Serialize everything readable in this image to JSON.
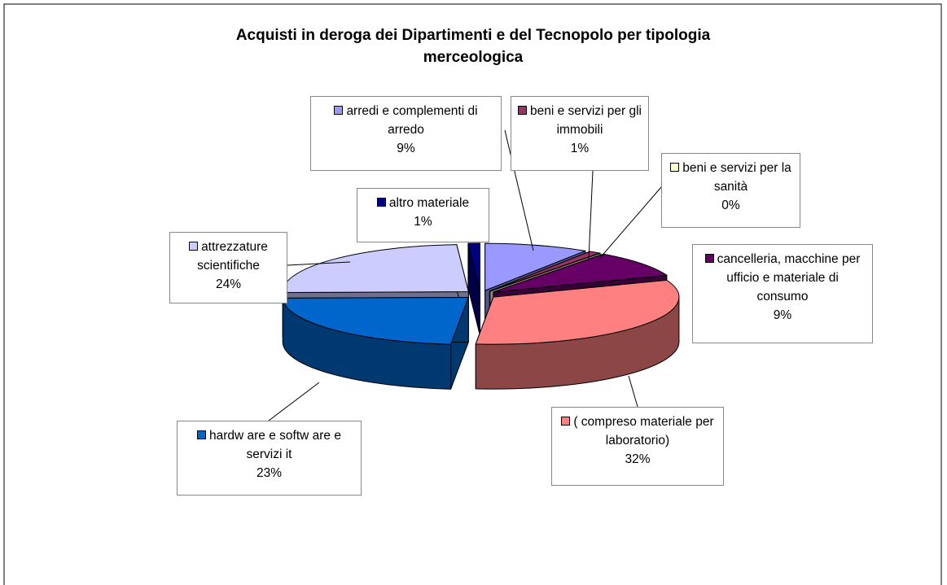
{
  "chart_data": {
    "type": "pie3d",
    "title": "Acquisti in deroga dei Dipartimenti e del Tecnopolo per tipologia merceologica",
    "categories": [
      "arredi e complementi di arredo",
      "beni e servizi per gli immobili",
      "beni e servizi per la sanità",
      "cancelleria, macchine per ufficio e materiale di consumo",
      "( compreso materiale per laboratorio)",
      "hardw are e softw are e servizi it",
      "attrezzature scientifiche",
      "altro materiale"
    ],
    "values": [
      9,
      1,
      0,
      9,
      32,
      23,
      24,
      1
    ],
    "value_labels": [
      "9%",
      "1%",
      "0%",
      "9%",
      "32%",
      "23%",
      "24%",
      "1%"
    ],
    "colors": [
      "#9999ff",
      "#993366",
      "#ffffcc",
      "#660066",
      "#ff8080",
      "#0066cc",
      "#ccccff",
      "#000080"
    ]
  }
}
